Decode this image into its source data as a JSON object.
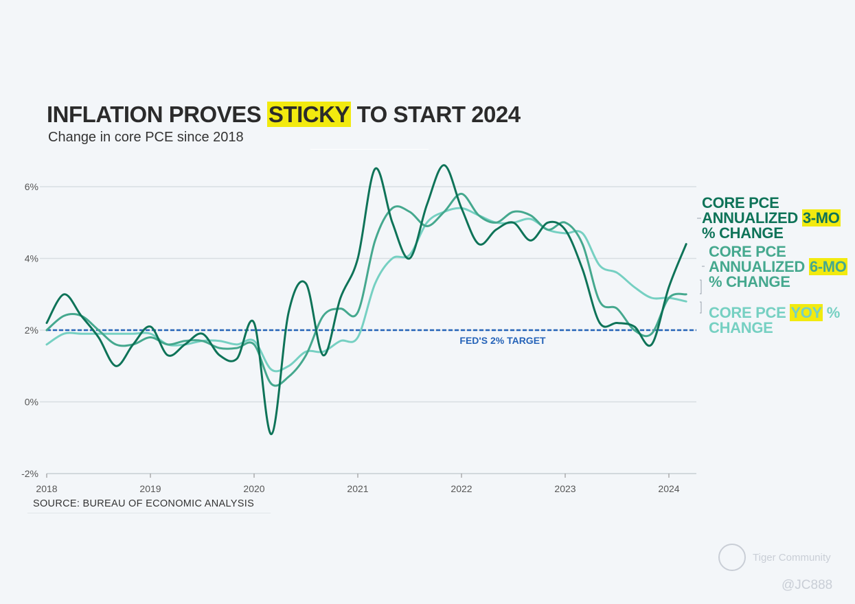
{
  "header": {
    "title_before": "INFLATION PROVES ",
    "title_highlight": "STICKY",
    "title_after": " TO START 2024",
    "subtitle": "Change in core PCE since 2018"
  },
  "source": "SOURCE: BUREAU OF ECONOMIC ANALYSIS",
  "watermark": {
    "name": "Tiger Community",
    "handle": "@JC888"
  },
  "legend": {
    "3mo": {
      "line1": "CORE PCE",
      "line2a": "ANNUALIZED ",
      "line2b": "3-MO",
      "line3": "% CHANGE"
    },
    "6mo": {
      "line1": "CORE PCE",
      "line2a": "ANNUALIZED ",
      "line2b": "6-MO",
      "line3": "% CHANGE"
    },
    "yoy": {
      "line1a": "CORE PCE ",
      "line1b": "YOY",
      "line1c": " %",
      "line2": "CHANGE"
    }
  },
  "colors": {
    "3mo": "#0e7358",
    "6mo": "#45a88e",
    "yoy": "#76d0c2",
    "target": "#2563b8",
    "highlight": "#f2ea0f",
    "grid": "#d8dde2"
  },
  "chart_data": {
    "type": "line",
    "title": "INFLATION PROVES STICKY TO START 2024",
    "subtitle": "Change in core PCE since 2018",
    "x_ticks": [
      "2018",
      "2019",
      "2020",
      "2021",
      "2022",
      "2023",
      "2024"
    ],
    "y_ticks": [
      "-2%",
      "0%",
      "2%",
      "4%",
      "6%"
    ],
    "ylim": [
      -2,
      6.5
    ],
    "xlim": [
      "2018-01",
      "2024-03"
    ],
    "grid": "horizontal",
    "reference_line": {
      "value": 2,
      "label": "FED'S 2% TARGET",
      "style": "dashed"
    },
    "x": [
      "2018-01",
      "2018-03",
      "2018-05",
      "2018-07",
      "2018-09",
      "2018-11",
      "2019-01",
      "2019-03",
      "2019-05",
      "2019-07",
      "2019-09",
      "2019-11",
      "2020-01",
      "2020-03",
      "2020-05",
      "2020-07",
      "2020-09",
      "2020-11",
      "2021-01",
      "2021-03",
      "2021-05",
      "2021-07",
      "2021-09",
      "2021-11",
      "2022-01",
      "2022-03",
      "2022-05",
      "2022-07",
      "2022-09",
      "2022-11",
      "2023-01",
      "2023-03",
      "2023-05",
      "2023-07",
      "2023-09",
      "2023-11",
      "2024-01",
      "2024-03"
    ],
    "series": [
      {
        "name": "CORE PCE ANNUALIZED 3-MO % CHANGE",
        "values": [
          2.2,
          3.0,
          2.4,
          1.8,
          1.0,
          1.6,
          2.1,
          1.3,
          1.6,
          1.9,
          1.3,
          1.2,
          2.2,
          -0.9,
          2.5,
          3.3,
          1.3,
          2.9,
          4.0,
          6.5,
          5.0,
          4.0,
          5.5,
          6.6,
          5.4,
          4.4,
          4.8,
          5.0,
          4.5,
          5.0,
          4.8,
          3.7,
          2.2,
          2.2,
          2.1,
          1.6,
          3.2,
          4.4
        ]
      },
      {
        "name": "CORE PCE ANNUALIZED 6-MO % CHANGE",
        "values": [
          2.0,
          2.4,
          2.4,
          2.0,
          1.6,
          1.6,
          1.8,
          1.6,
          1.7,
          1.7,
          1.5,
          1.5,
          1.6,
          0.5,
          0.7,
          1.3,
          2.4,
          2.6,
          2.5,
          4.5,
          5.4,
          5.3,
          4.9,
          5.3,
          5.8,
          5.2,
          5.0,
          5.3,
          5.2,
          4.8,
          5.0,
          4.4,
          2.8,
          2.6,
          2.0,
          1.9,
          2.9,
          3.0
        ]
      },
      {
        "name": "CORE PCE YOY % CHANGE",
        "values": [
          1.6,
          1.9,
          1.9,
          1.9,
          1.9,
          1.9,
          1.9,
          1.6,
          1.6,
          1.7,
          1.7,
          1.6,
          1.7,
          0.9,
          1.0,
          1.4,
          1.4,
          1.7,
          1.8,
          3.3,
          4.0,
          4.1,
          5.0,
          5.3,
          5.4,
          5.2,
          5.0,
          5.0,
          5.1,
          4.8,
          4.7,
          4.7,
          3.8,
          3.6,
          3.2,
          2.9,
          2.9,
          2.8
        ]
      }
    ]
  }
}
